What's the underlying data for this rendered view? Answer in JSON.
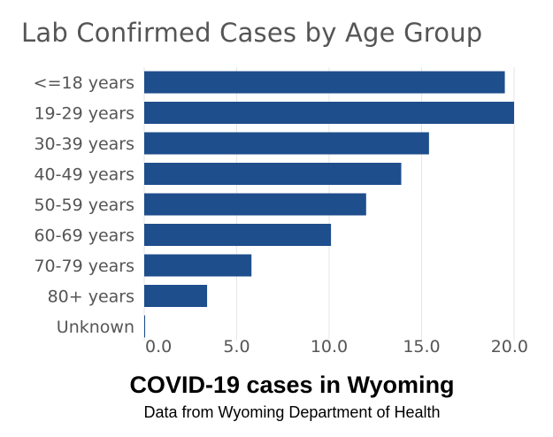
{
  "chart_data": {
    "type": "bar",
    "orientation": "horizontal",
    "title": "Lab Confirmed Cases by Age Group",
    "categories": [
      "<=18 years",
      "19-29 years",
      "30-39 years",
      "40-49 years",
      "50-59 years",
      "60-69 years",
      "70-79 years",
      "80+ years",
      "Unknown"
    ],
    "values": [
      19.5,
      20.0,
      15.4,
      13.9,
      12.0,
      10.1,
      5.8,
      3.4,
      0.05
    ],
    "xlim": [
      0,
      20.0
    ],
    "xticks": [
      "0.0",
      "5.0",
      "10.0",
      "15.0",
      "20.0"
    ],
    "xlabel": "",
    "ylabel": "",
    "grid": "vertical",
    "bar_color": "#1f4e8c",
    "grid_color": "#e6e6e6"
  },
  "caption": {
    "title": "COVID-19 cases in Wyoming",
    "subtitle": "Data from Wyoming Department of Health"
  }
}
